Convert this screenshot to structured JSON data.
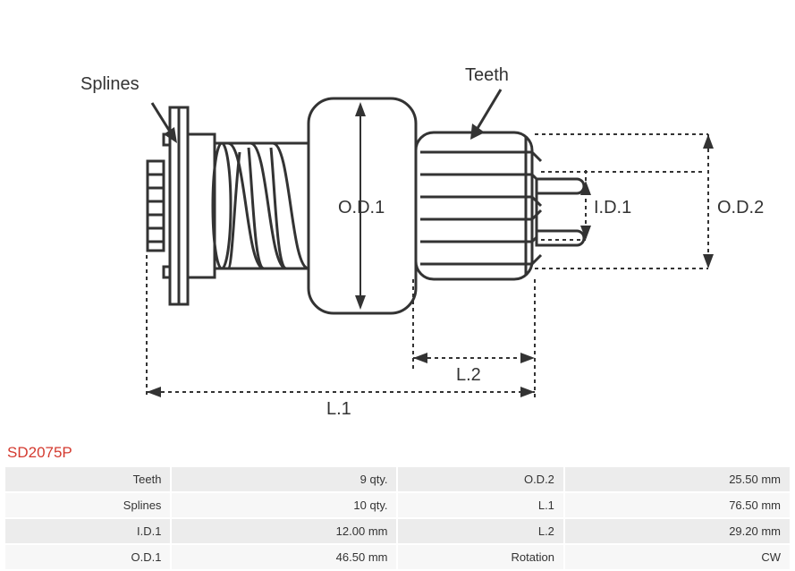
{
  "part_number": "SD2075P",
  "part_number_color": "#d43a2f",
  "diagram": {
    "labels": {
      "splines": "Splines",
      "teeth": "Teeth",
      "od1": "O.D.1",
      "id1": "I.D.1",
      "od2": "O.D.2",
      "l1": "L.1",
      "l2": "L.2"
    },
    "label_fontsize": 20,
    "label_color": "#333333",
    "stroke_color": "#333333",
    "stroke_width": 3,
    "dim_stroke_width": 2,
    "dash": "4 4"
  },
  "table": {
    "row_bg_odd": "#ececec",
    "row_bg_even": "#f7f7f7",
    "text_color": "#333333",
    "rows": [
      {
        "l1": "Teeth",
        "v1": "9 qty.",
        "l2": "O.D.2",
        "v2": "25.50 mm"
      },
      {
        "l1": "Splines",
        "v1": "10 qty.",
        "l2": "L.1",
        "v2": "76.50 mm"
      },
      {
        "l1": "I.D.1",
        "v1": "12.00 mm",
        "l2": "L.2",
        "v2": "29.20 mm"
      },
      {
        "l1": "O.D.1",
        "v1": "46.50 mm",
        "l2": "Rotation",
        "v2": "CW"
      }
    ]
  }
}
